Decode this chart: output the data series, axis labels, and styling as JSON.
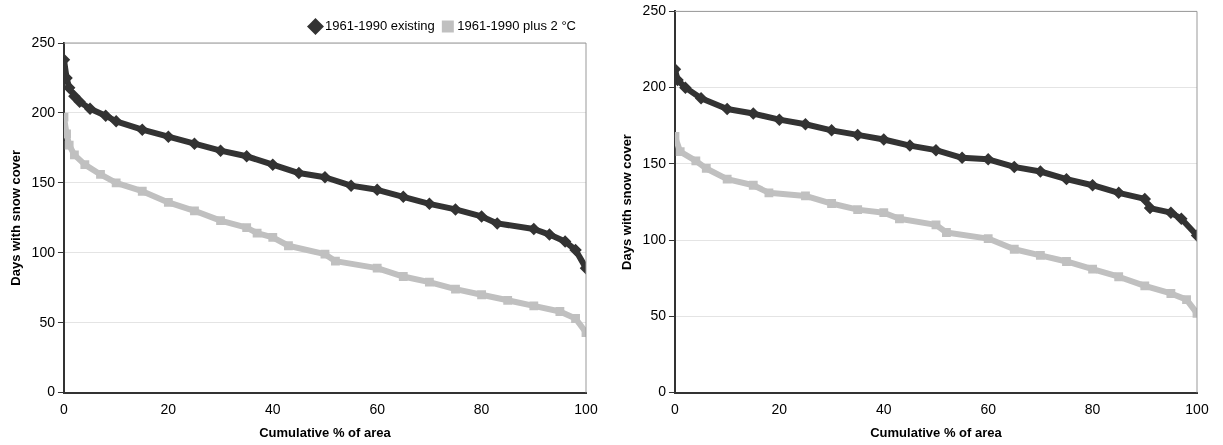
{
  "chart_data": [
    {
      "type": "line",
      "xlabel": "Cumulative % of area",
      "ylabel": "Days with snow cover",
      "xlim": [
        0,
        100
      ],
      "xticks": [
        0,
        20,
        40,
        60,
        80,
        100
      ],
      "ylim": [
        0,
        250
      ],
      "yticks": [
        0,
        50,
        100,
        150,
        200,
        250
      ],
      "grid": "y",
      "legend": "top right",
      "series": [
        {
          "name": "1961-1990 existing",
          "color": "#333333",
          "marker": "diamond",
          "x": [
            0,
            0.5,
            1,
            2,
            3,
            5,
            8,
            10,
            15,
            20,
            25,
            30,
            35,
            40,
            45,
            50,
            55,
            60,
            65,
            70,
            75,
            80,
            83,
            90,
            93,
            96,
            98,
            100
          ],
          "values": [
            238,
            225,
            218,
            212,
            208,
            203,
            198,
            194,
            188,
            183,
            178,
            173,
            169,
            163,
            157,
            154,
            148,
            145,
            140,
            135,
            131,
            126,
            121,
            117,
            113,
            108,
            102,
            89
          ]
        },
        {
          "name": "1961-1990 plus 2 °C",
          "color": "#c0c0c0",
          "marker": "square",
          "x": [
            0,
            0.5,
            1,
            2,
            4,
            7,
            10,
            15,
            20,
            25,
            30,
            35,
            37,
            40,
            43,
            50,
            52,
            60,
            65,
            70,
            75,
            80,
            85,
            90,
            95,
            98,
            100
          ],
          "values": [
            197,
            185,
            177,
            170,
            163,
            156,
            150,
            144,
            136,
            130,
            123,
            118,
            114,
            111,
            105,
            99,
            94,
            89,
            83,
            79,
            74,
            70,
            66,
            62,
            58,
            53,
            43
          ]
        }
      ]
    },
    {
      "type": "line",
      "xlabel": "Cumulative % of area",
      "ylabel": "Days with snow cover",
      "xlim": [
        0,
        100
      ],
      "xticks": [
        0,
        20,
        40,
        60,
        80,
        100
      ],
      "ylim": [
        0,
        250
      ],
      "yticks": [
        0,
        50,
        100,
        150,
        200,
        250
      ],
      "grid": "y",
      "series": [
        {
          "color": "#333333",
          "marker": "diamond",
          "x": [
            0,
            0.5,
            2,
            5,
            10,
            15,
            20,
            25,
            30,
            35,
            40,
            45,
            50,
            55,
            60,
            65,
            70,
            75,
            80,
            85,
            90,
            91,
            95,
            97,
            100
          ],
          "values": [
            212,
            205,
            200,
            193,
            186,
            183,
            179,
            176,
            172,
            169,
            166,
            162,
            159,
            154,
            153,
            148,
            145,
            140,
            136,
            131,
            127,
            121,
            118,
            114,
            103
          ]
        },
        {
          "color": "#c0c0c0",
          "marker": "square",
          "x": [
            0,
            1,
            4,
            6,
            10,
            15,
            18,
            25,
            30,
            35,
            40,
            43,
            50,
            52,
            60,
            65,
            70,
            75,
            80,
            85,
            90,
            95,
            98,
            100
          ],
          "values": [
            168,
            158,
            152,
            147,
            140,
            136,
            131,
            129,
            124,
            120,
            118,
            114,
            110,
            105,
            101,
            94,
            90,
            86,
            81,
            76,
            70,
            65,
            61,
            52
          ]
        }
      ]
    }
  ]
}
